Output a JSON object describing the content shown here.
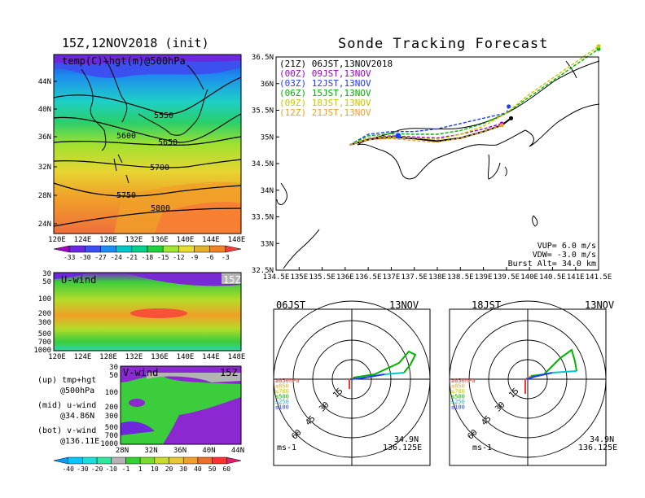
{
  "left": {
    "title": "15Z,12NOV2018 (init)",
    "map_label": "temp(C)+hgt(m)@500hPa",
    "lat_ticks": [
      "44N",
      "40N",
      "36N",
      "32N",
      "28N",
      "24N"
    ],
    "lon_ticks": [
      "120E",
      "124E",
      "128E",
      "132E",
      "136E",
      "140E",
      "144E",
      "148E"
    ],
    "contours": [
      "5550",
      "5600",
      "5650",
      "5700",
      "5750",
      "5800"
    ],
    "temp_colorbar": [
      "-33",
      "-30",
      "-27",
      "-24",
      "-21",
      "-18",
      "-15",
      "-12",
      "-9",
      "-6",
      "-3"
    ],
    "temp_colors": [
      "#a000c8",
      "#6e28dc",
      "#3c50f0",
      "#1e8cf0",
      "#00c8c8",
      "#00d28c",
      "#1ed23c",
      "#a0e632",
      "#e6dc32",
      "#e6af2d",
      "#f08228",
      "#fa3c3c"
    ],
    "uwind_label": "U-wind",
    "uwind_time": "15Z",
    "uwind_pres": [
      "30",
      "50",
      "100",
      "200",
      "300",
      "500",
      "700",
      "1000"
    ],
    "vwind_label": "V-wind",
    "vwind_time": "15Z",
    "vwind_pres": [
      "30",
      "50",
      "100",
      "200",
      "300",
      "500",
      "700",
      "1000"
    ],
    "vwind_lat": [
      "28N",
      "32N",
      "36N",
      "40N",
      "44N"
    ],
    "legend_lines": [
      "(up) tmp+hgt",
      "@500hPa",
      "(mid) u-wind",
      "@34.86N",
      "(bot) v-wind",
      "@136.11E"
    ],
    "wind_colorbar": [
      "-40",
      "-30",
      "-20",
      "-10",
      "-1",
      "1",
      "10",
      "20",
      "30",
      "40",
      "50",
      "60"
    ],
    "wind_colors": [
      "#00a0ff",
      "#00c8ff",
      "#1edcdc",
      "#32e6a0",
      "#b4b4b4",
      "#32d232",
      "#78dc28",
      "#c8dc28",
      "#e6c832",
      "#f0a028",
      "#f06e28",
      "#fa3232",
      "#e61e6e"
    ]
  },
  "right": {
    "title": "Sonde Tracking Forecast",
    "header": "(21Z) 06JST,13NOV2018",
    "entries": [
      {
        "label": "(00Z) 09JST,13NOV",
        "color": "#a000c8"
      },
      {
        "label": "(03Z) 12JST,13NOV",
        "color": "#1e3cff"
      },
      {
        "label": "(06Z) 15JST,13NOV",
        "color": "#00b400"
      },
      {
        "label": "(09Z) 18JST,13NOV",
        "color": "#c8c800"
      },
      {
        "label": "(12Z) 21JST,13NOV",
        "color": "#f0a028"
      }
    ],
    "lat_ticks": [
      "36.5N",
      "36N",
      "35.5N",
      "35N",
      "34.5N",
      "34N",
      "33.5N",
      "33N",
      "32.5N"
    ],
    "lon_ticks": [
      "134.5E",
      "135E",
      "135.5E",
      "136E",
      "136.5E",
      "137E",
      "137.5E",
      "138E",
      "138.5E",
      "139E",
      "139.5E",
      "140E",
      "140.5E",
      "141E",
      "141.5E"
    ],
    "vup": "VUP=  6.0 m/s",
    "vdw": "VDW= -3.0 m/s",
    "burst": "Burst Alt= 34.0 km"
  },
  "polars": [
    {
      "time": "06JST",
      "date": "13NOV",
      "lat": "34.9N",
      "lon": "136.125E",
      "unit": "ms-1"
    },
    {
      "time": "18JST",
      "date": "13NOV",
      "lat": "34.9N",
      "lon": "136.125E",
      "unit": "ms-1"
    }
  ],
  "polar_ring_labels": [
    "15",
    "30",
    "45",
    "60"
  ],
  "polar_levels": [
    {
      "label": "≥850hPa",
      "color": "#fa3232"
    },
    {
      "label": "≤850",
      "color": "#f0a028"
    },
    {
      "label": "≤700",
      "color": "#c8c800"
    },
    {
      "label": "≤500",
      "color": "#00b400"
    },
    {
      "label": "≤250",
      "color": "#00c8c8"
    },
    {
      "label": "≤100",
      "color": "#1e3cff"
    }
  ],
  "chart_data": {
    "type": "line",
    "title": "Sonde Tracking Forecast",
    "xlabel": "",
    "ylabel": "",
    "xlim": [
      134.5,
      141.5
    ],
    "ylim": [
      32.5,
      36.5
    ],
    "series": [
      {
        "name": "(21Z) 06JST,13NOV2018",
        "color": "#000000",
        "x": [
          136.1,
          136.5,
          137.0,
          137.5,
          138.0,
          138.5,
          139.0,
          139.4,
          139.6
        ],
        "y": [
          34.85,
          34.95,
          35.0,
          34.97,
          34.92,
          34.98,
          35.1,
          35.22,
          35.35
        ]
      },
      {
        "name": "(00Z) 09JST,13NOV",
        "color": "#a000c8",
        "x": [
          136.1,
          136.5,
          137.0,
          137.5,
          138.0,
          138.5,
          139.0,
          139.4
        ],
        "y": [
          34.85,
          34.98,
          35.02,
          35.0,
          34.98,
          35.05,
          35.15,
          35.25
        ]
      },
      {
        "name": "(03Z) 12JST,13NOV",
        "color": "#1e3cff",
        "x": [
          136.1,
          136.5,
          137.0,
          137.5,
          138.0,
          138.5,
          139.0,
          139.5,
          139.55
        ],
        "y": [
          34.85,
          35.05,
          35.1,
          35.1,
          35.15,
          35.25,
          35.35,
          35.45,
          35.57
        ]
      },
      {
        "name": "(06Z) 15JST,13NOV",
        "color": "#00b400",
        "x": [
          136.1,
          136.5,
          137.0,
          137.5,
          138.0,
          138.5,
          139.0,
          139.5,
          140.0,
          140.5,
          141.0,
          141.5
        ],
        "y": [
          34.85,
          35.02,
          35.06,
          35.05,
          35.05,
          35.12,
          35.25,
          35.45,
          35.75,
          36.05,
          36.35,
          36.65
        ]
      },
      {
        "name": "(09Z) 18JST,13NOV",
        "color": "#c8c800",
        "x": [
          136.1,
          136.5,
          137.0,
          137.5,
          138.0,
          138.5,
          139.0,
          139.5,
          140.0,
          140.5,
          141.0,
          141.5
        ],
        "y": [
          34.85,
          34.98,
          35.0,
          34.98,
          34.95,
          35.05,
          35.2,
          35.45,
          35.8,
          36.1,
          36.4,
          36.7
        ]
      },
      {
        "name": "(12Z) 21JST,13NOV",
        "color": "#f0a028",
        "x": [
          136.1,
          136.5,
          137.0,
          137.5,
          138.0,
          138.5,
          139.0,
          139.4
        ],
        "y": [
          34.85,
          34.95,
          34.97,
          34.93,
          34.9,
          34.98,
          35.1,
          35.22
        ]
      }
    ]
  }
}
